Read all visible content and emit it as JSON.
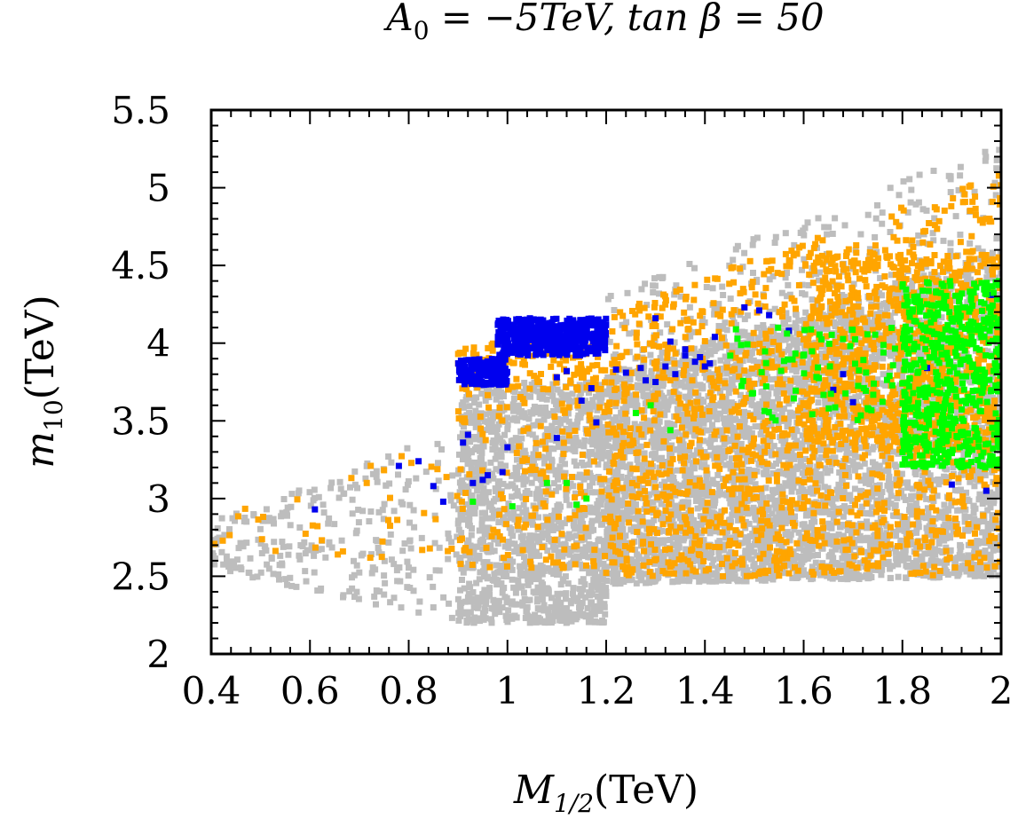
{
  "chart_data": {
    "type": "scatter",
    "title": "A₀ = −5TeV, tan β = 50",
    "title_parts": {
      "A": "A",
      "sub0": "0",
      "rest": " = −5TeV, tan β = 50"
    },
    "xlabel": "M₁/₂(TeV)",
    "xlabel_parts": {
      "M": "M",
      "sub": "1/2",
      "unit": "(TeV)"
    },
    "ylabel": "m₁₀(TeV)",
    "ylabel_parts": {
      "m": "m",
      "sub": "10",
      "unit": "(TeV)"
    },
    "xlim": [
      0.4,
      2.0
    ],
    "ylim": [
      2.0,
      5.5
    ],
    "xticks": [
      "0.4",
      "0.6",
      "0.8",
      "1",
      "1.2",
      "1.4",
      "1.6",
      "1.8",
      "2"
    ],
    "yticks": [
      "2",
      "2.5",
      "3",
      "3.5",
      "4",
      "4.5",
      "5",
      "5.5"
    ],
    "legend": "none",
    "series": [
      {
        "name": "gray",
        "color": "#bdbdbd",
        "regions": [
          {
            "x": [
              0.4,
              0.9
            ],
            "y_low": [
              2.55,
              2.2
            ],
            "y_high": [
              2.85,
              3.45
            ],
            "n": 260
          },
          {
            "x": [
              0.9,
              1.2
            ],
            "y": [
              2.2,
              3.75
            ],
            "n": 1400
          },
          {
            "x": [
              1.2,
              2.0
            ],
            "y_low": [
              2.45,
              2.5
            ],
            "y_high": [
              3.8,
              4.6
            ],
            "n": 4200
          },
          {
            "x": [
              1.2,
              2.0
            ],
            "y_low": [
              3.6,
              4.1
            ],
            "y_high": [
              4.3,
              5.3
            ],
            "n": 400
          }
        ]
      },
      {
        "name": "orange",
        "color": "#ffa500",
        "regions": [
          {
            "x": [
              0.4,
              0.9
            ],
            "y_low": [
              2.6,
              2.6
            ],
            "y_high": [
              2.9,
              3.4
            ],
            "n": 40
          },
          {
            "x": [
              0.9,
              1.2
            ],
            "y": [
              2.55,
              3.7
            ],
            "n": 150
          },
          {
            "x": [
              0.9,
              1.2
            ],
            "y": [
              3.7,
              4.0
            ],
            "n": 130
          },
          {
            "x": [
              1.2,
              2.0
            ],
            "y_low": [
              2.5,
              2.5
            ],
            "y_high": [
              4.2,
              5.1
            ],
            "n": 1300
          },
          {
            "x": [
              1.6,
              2.0
            ],
            "y": [
              3.3,
              4.6
            ],
            "n": 700
          }
        ]
      },
      {
        "name": "blue",
        "color": "#0000ee",
        "clusters": [
          {
            "x": [
              0.9,
              1.0
            ],
            "y": [
              3.73,
              3.9
            ],
            "n": 200
          },
          {
            "x": [
              0.98,
              1.2
            ],
            "y": [
              3.92,
              4.16
            ],
            "n": 420
          }
        ],
        "points": [
          [
            0.78,
            3.21
          ],
          [
            0.82,
            3.24
          ],
          [
            0.85,
            3.08
          ],
          [
            0.87,
            2.98
          ],
          [
            0.61,
            2.93
          ],
          [
            0.91,
            3.36
          ],
          [
            0.92,
            3.41
          ],
          [
            0.93,
            3.1
          ],
          [
            0.95,
            3.12
          ],
          [
            0.96,
            3.15
          ],
          [
            0.99,
            3.17
          ],
          [
            1.0,
            3.33
          ],
          [
            1.1,
            3.39
          ],
          [
            1.15,
            3.63
          ],
          [
            1.18,
            3.49
          ],
          [
            1.1,
            3.78
          ],
          [
            1.12,
            3.82
          ],
          [
            1.17,
            3.71
          ],
          [
            1.22,
            3.83
          ],
          [
            1.24,
            3.81
          ],
          [
            1.27,
            3.84
          ],
          [
            1.28,
            3.76
          ],
          [
            1.3,
            3.75
          ],
          [
            1.32,
            3.85
          ],
          [
            1.34,
            3.8
          ],
          [
            1.36,
            3.92
          ],
          [
            1.38,
            3.88
          ],
          [
            1.4,
            3.85
          ],
          [
            1.3,
            4.16
          ],
          [
            1.33,
            4.01
          ],
          [
            1.36,
            3.96
          ],
          [
            1.42,
            4.04
          ],
          [
            1.48,
            4.23
          ],
          [
            1.51,
            4.21
          ],
          [
            1.53,
            4.18
          ],
          [
            1.57,
            4.08
          ],
          [
            1.66,
            3.7
          ],
          [
            1.68,
            3.8
          ],
          [
            1.7,
            3.62
          ],
          [
            1.85,
            3.84
          ],
          [
            1.9,
            3.09
          ],
          [
            1.97,
            3.05
          ],
          [
            1.98,
            4.31
          ],
          [
            1.39,
            3.91
          ],
          [
            1.41,
            3.87
          ]
        ]
      },
      {
        "name": "green",
        "color": "#00ff00",
        "regions": [
          {
            "x": [
              1.45,
              2.0
            ],
            "y": [
              3.5,
              4.1
            ],
            "n": 110
          },
          {
            "x": [
              1.8,
              2.0
            ],
            "y": [
              3.2,
              4.4
            ],
            "n": 520
          }
        ],
        "points": [
          [
            0.93,
            2.98
          ],
          [
            1.01,
            2.95
          ],
          [
            1.14,
            2.96
          ],
          [
            1.12,
            3.1
          ],
          [
            1.08,
            3.1
          ],
          [
            1.26,
            3.55
          ],
          [
            1.29,
            3.6
          ],
          [
            1.33,
            3.44
          ],
          [
            1.16,
            3.0
          ]
        ]
      }
    ]
  }
}
